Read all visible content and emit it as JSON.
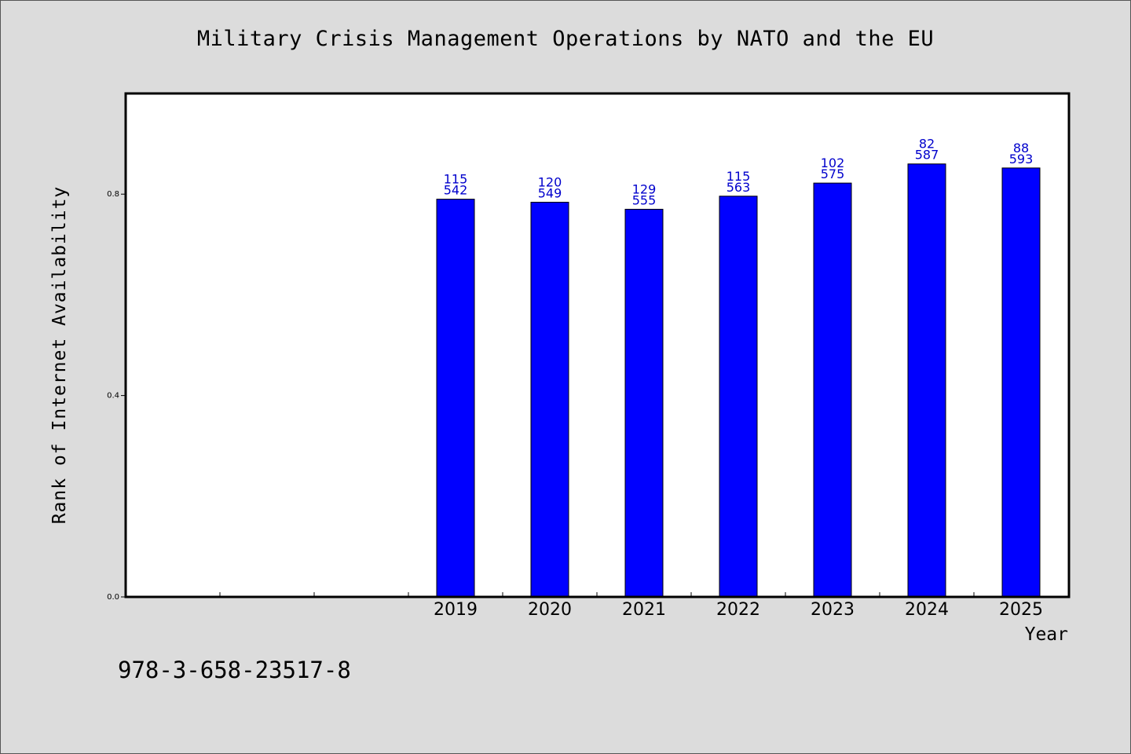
{
  "chart_data": {
    "type": "bar",
    "title": "Military Crisis Management Operations by NATO and the EU",
    "xlabel": "Year",
    "ylabel": "Rank of Internet Availability",
    "categories": [
      "2019",
      "2020",
      "2021",
      "2022",
      "2023",
      "2024",
      "2025"
    ],
    "values": [
      0.79,
      0.784,
      0.77,
      0.796,
      0.822,
      0.86,
      0.852
    ],
    "bar_labels": [
      [
        "115",
        "542"
      ],
      [
        "120",
        "549"
      ],
      [
        "129",
        "555"
      ],
      [
        "115",
        "563"
      ],
      [
        "102",
        "575"
      ],
      [
        "82",
        "587"
      ],
      [
        "88",
        "593"
      ]
    ],
    "yticks": [
      "0.0",
      "0.4",
      "0.8"
    ],
    "ytick_values": [
      0.0,
      0.4,
      0.8
    ],
    "ylim": [
      0,
      1.0
    ],
    "empty_leading_slots": 3,
    "grid": false,
    "bar_color": "#0000ff",
    "label_color": "#0000cc"
  },
  "footer": {
    "code": "978-3-658-23517-8"
  }
}
